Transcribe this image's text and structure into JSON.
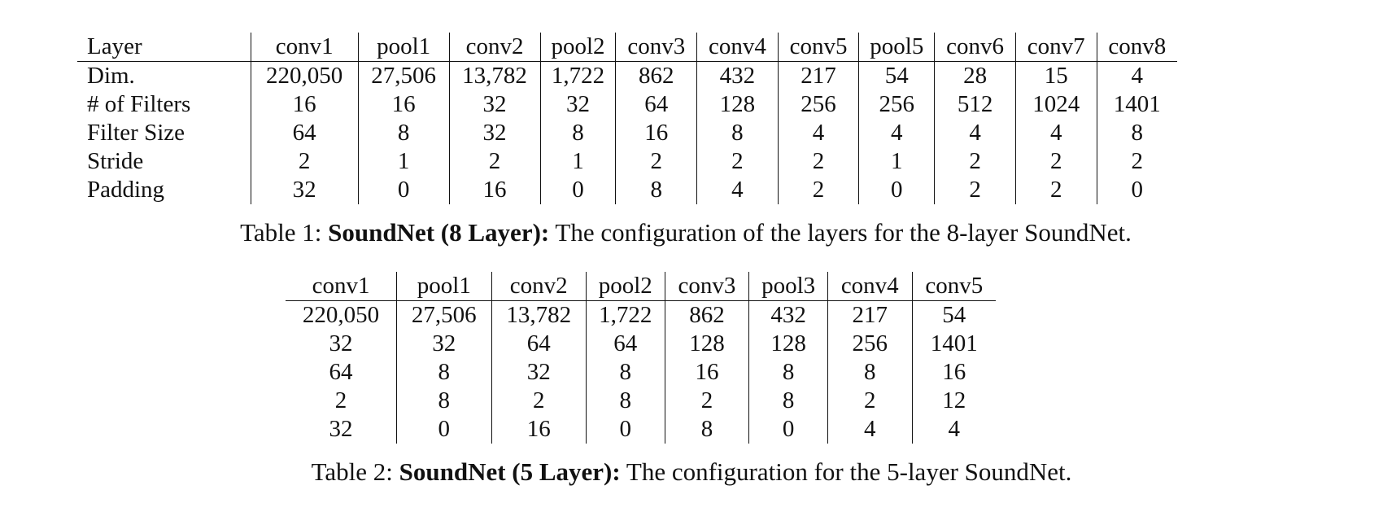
{
  "table1": {
    "corner": "Layer",
    "columns": [
      "conv1",
      "pool1",
      "conv2",
      "pool2",
      "conv3",
      "conv4",
      "conv5",
      "pool5",
      "conv6",
      "conv7",
      "conv8"
    ],
    "rows": [
      {
        "label": "Dim.",
        "cells": [
          "220,050",
          "27,506",
          "13,782",
          "1,722",
          "862",
          "432",
          "217",
          "54",
          "28",
          "15",
          "4"
        ]
      },
      {
        "label": "# of Filters",
        "cells": [
          "16",
          "16",
          "32",
          "32",
          "64",
          "128",
          "256",
          "256",
          "512",
          "1024",
          "1401"
        ]
      },
      {
        "label": "Filter Size",
        "cells": [
          "64",
          "8",
          "32",
          "8",
          "16",
          "8",
          "4",
          "4",
          "4",
          "4",
          "8"
        ]
      },
      {
        "label": "Stride",
        "cells": [
          "2",
          "1",
          "2",
          "1",
          "2",
          "2",
          "2",
          "1",
          "2",
          "2",
          "2"
        ]
      },
      {
        "label": "Padding",
        "cells": [
          "32",
          "0",
          "16",
          "0",
          "8",
          "4",
          "2",
          "0",
          "2",
          "2",
          "0"
        ]
      }
    ],
    "caption": {
      "prefix": "Table 1: ",
      "bold": "SoundNet (8 Layer):",
      "rest": " The configuration of the layers for the 8-layer SoundNet."
    }
  },
  "table2": {
    "columns": [
      "conv1",
      "pool1",
      "conv2",
      "pool2",
      "conv3",
      "pool3",
      "conv4",
      "conv5"
    ],
    "rows": [
      {
        "cells": [
          "220,050",
          "27,506",
          "13,782",
          "1,722",
          "862",
          "432",
          "217",
          "54"
        ]
      },
      {
        "cells": [
          "32",
          "32",
          "64",
          "64",
          "128",
          "128",
          "256",
          "1401"
        ]
      },
      {
        "cells": [
          "64",
          "8",
          "32",
          "8",
          "16",
          "8",
          "8",
          "16"
        ]
      },
      {
        "cells": [
          "2",
          "8",
          "2",
          "8",
          "2",
          "8",
          "2",
          "12"
        ]
      },
      {
        "cells": [
          "32",
          "0",
          "16",
          "0",
          "8",
          "0",
          "4",
          "4"
        ]
      }
    ],
    "caption": {
      "prefix": "Table 2: ",
      "bold": "SoundNet (5 Layer):",
      "rest": " The configuration for the 5-layer SoundNet."
    }
  }
}
